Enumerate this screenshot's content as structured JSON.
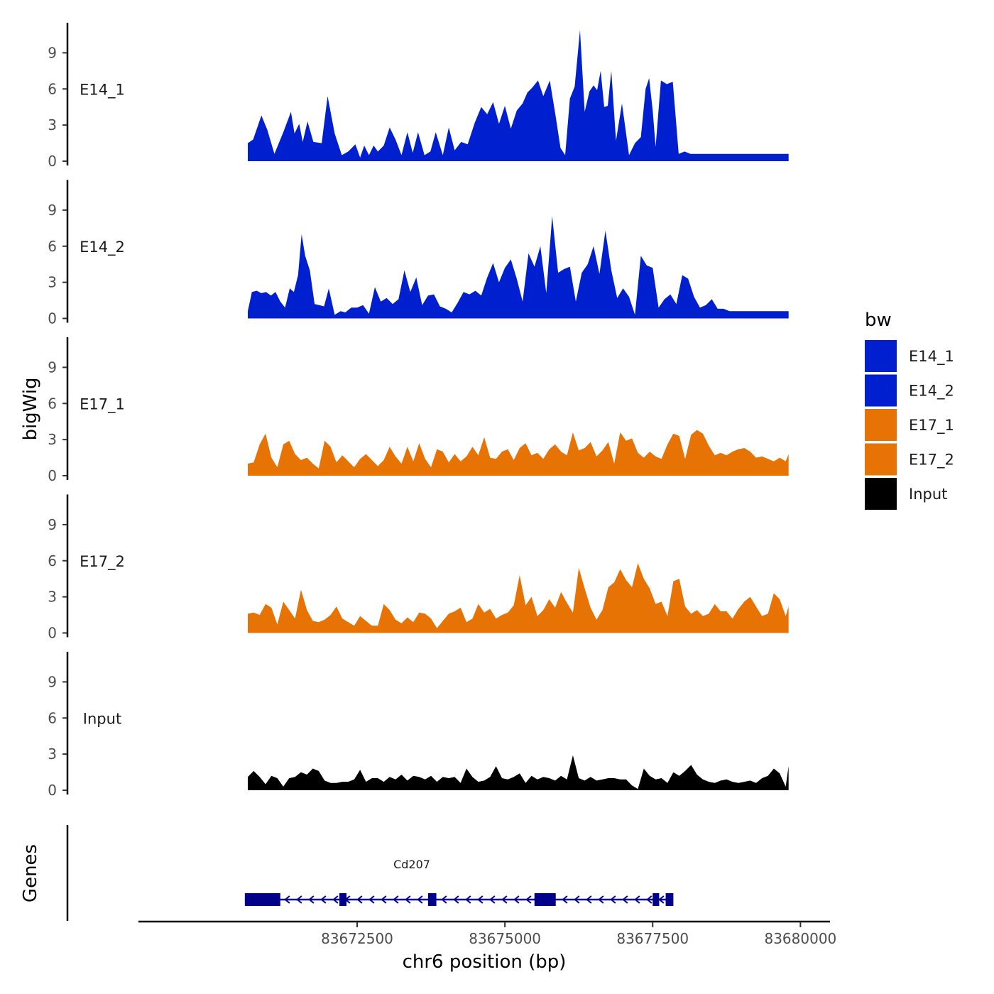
{
  "chart_data": {
    "type": "area",
    "y_axis_title": "bigWig",
    "x_axis_title": "chr6 position (bp)",
    "region": {
      "chrom": "chr6",
      "start": 83670650,
      "end": 83679800
    },
    "xlim": [
      83668800,
      83680500
    ],
    "ylim": [
      0,
      11.5
    ],
    "y_ticks": [
      0,
      3,
      6,
      9
    ],
    "x_ticks": [
      {
        "value": 83672500,
        "label": "83672500"
      },
      {
        "value": 83675000,
        "label": "83675000"
      },
      {
        "value": 83677500,
        "label": "83677500"
      },
      {
        "value": 83680000,
        "label": "83680000"
      }
    ],
    "legend": {
      "title": "bw",
      "items": [
        {
          "label": "E14_1",
          "color": "#0020cf"
        },
        {
          "label": "E14_2",
          "color": "#0020cf"
        },
        {
          "label": "E17_1",
          "color": "#e87305"
        },
        {
          "label": "E17_2",
          "color": "#e87305"
        },
        {
          "label": "Input",
          "color": "#000000"
        }
      ]
    },
    "tracks": [
      {
        "name": "E14_1",
        "color": "#0020cf",
        "x": [
          83670650,
          83670740,
          83670880,
          83670980,
          83671100,
          83671250,
          83671380,
          83671440,
          83671520,
          83671580,
          83671660,
          83671760,
          83671900,
          83672000,
          83672120,
          83672240,
          83672350,
          83672470,
          83672550,
          83672620,
          83672700,
          83672780,
          83672850,
          83672950,
          83673050,
          83673150,
          83673250,
          83673350,
          83673440,
          83673530,
          83673640,
          83673740,
          83673830,
          83673950,
          83674050,
          83674150,
          83674260,
          83674370,
          83674490,
          83674600,
          83674700,
          83674800,
          83674900,
          83675000,
          83675100,
          83675200,
          83675300,
          83675380,
          83675460,
          83675560,
          83675650,
          83675760,
          83675860,
          83675940,
          83676020,
          83676100,
          83676180,
          83676270,
          83676350,
          83676430,
          83676500,
          83676560,
          83676620,
          83676680,
          83676740,
          83676800,
          83676880,
          83676980,
          83677100,
          83677200,
          83677300,
          83677380,
          83677440,
          83677500,
          83677550,
          83677640,
          83677740,
          83677840,
          83677940,
          83678040,
          83678140,
          83678240,
          83678340,
          83678420,
          83678520,
          83678620,
          83678720,
          83678820,
          83678920,
          83679000,
          83679100,
          83679180,
          83679260,
          83679340,
          83679420,
          83679480,
          83679560,
          83679620,
          83679680,
          83679740,
          83679800
        ],
        "y": [
          1.5,
          1.8,
          3.8,
          2.6,
          0.6,
          2.4,
          4.1,
          2.3,
          3.1,
          1.6,
          3.3,
          1.6,
          1.5,
          5.4,
          2.3,
          0.5,
          0.8,
          1.4,
          0.3,
          1.3,
          0.5,
          1.3,
          0.8,
          1.3,
          2.8,
          1.8,
          0.5,
          2.4,
          0.7,
          2.4,
          0.5,
          0.8,
          2.4,
          0.5,
          2.8,
          0.9,
          1.6,
          1.4,
          3.2,
          4.5,
          3.9,
          4.9,
          3.1,
          4.6,
          2.7,
          4.2,
          4.8,
          5.7,
          6.1,
          6.7,
          5.4,
          6.7,
          3.7,
          1.1,
          0.5,
          5.2,
          6.2,
          10.9,
          4.1,
          5.8,
          6.3,
          5.9,
          7.5,
          4.5,
          4.6,
          7.5,
          1.7,
          4.8,
          0.5,
          1.5,
          2.0,
          6.0,
          6.9,
          4.2,
          1.2,
          6.7,
          6.4,
          6.6,
          0.6,
          0.8,
          0.6,
          0.6,
          0.6,
          0.6,
          0.6,
          0.6,
          0.6,
          0.6,
          0.6,
          0.6,
          0.6,
          0.6,
          0.6,
          0.6,
          0.6,
          0.6,
          0.6,
          0.6,
          0.6,
          0.6,
          0.6
        ]
      },
      {
        "name": "E14_2",
        "color": "#0020cf",
        "x": [
          83670650,
          83670720,
          83670800,
          83670880,
          83670960,
          83671040,
          83671120,
          83671200,
          83671280,
          83671360,
          83671430,
          83671500,
          83671560,
          83671620,
          83671700,
          83671780,
          83671860,
          83671940,
          83672020,
          83672120,
          83672220,
          83672300,
          83672400,
          83672500,
          83672600,
          83672700,
          83672800,
          83672900,
          83673000,
          83673100,
          83673200,
          83673300,
          83673400,
          83673500,
          83673600,
          83673700,
          83673800,
          83673900,
          83674000,
          83674100,
          83674200,
          83674300,
          83674400,
          83674500,
          83674600,
          83674700,
          83674800,
          83674900,
          83675000,
          83675100,
          83675200,
          83675300,
          83675400,
          83675500,
          83675600,
          83675700,
          83675800,
          83675900,
          83676000,
          83676100,
          83676200,
          83676300,
          83676400,
          83676500,
          83676600,
          83676700,
          83676800,
          83676900,
          83677000,
          83677100,
          83677200,
          83677300,
          83677400,
          83677500,
          83677600,
          83677700,
          83677800,
          83677900,
          83678000,
          83678100,
          83678200,
          83678300,
          83678400,
          83678500,
          83678600,
          83678700,
          83678800,
          83678900,
          83679000,
          83679100,
          83679200,
          83679300,
          83679400,
          83679500,
          83679600,
          83679700,
          83679800
        ],
        "y": [
          0.6,
          2.2,
          2.3,
          2.1,
          2.2,
          1.9,
          2.2,
          1.4,
          0.9,
          2.5,
          2.2,
          3.6,
          7.0,
          5.2,
          4.0,
          1.2,
          1.1,
          1.0,
          2.5,
          0.3,
          0.6,
          0.5,
          0.9,
          0.9,
          1.1,
          0.4,
          2.6,
          1.4,
          1.7,
          1.2,
          1.6,
          4.0,
          2.2,
          3.4,
          1.1,
          1.9,
          2.0,
          1.0,
          0.8,
          0.5,
          1.3,
          2.2,
          2.0,
          2.3,
          1.9,
          3.4,
          4.6,
          3.0,
          4.2,
          4.9,
          3.3,
          1.4,
          5.4,
          4.3,
          6.0,
          2.1,
          8.5,
          3.8,
          4.1,
          4.3,
          1.4,
          3.8,
          4.5,
          6.0,
          3.7,
          7.3,
          4.0,
          1.7,
          2.5,
          1.8,
          0.3,
          5.2,
          4.4,
          4.2,
          0.9,
          1.6,
          2.0,
          1.2,
          3.6,
          3.3,
          1.8,
          0.9,
          1.1,
          1.6,
          0.8,
          0.8,
          0.6,
          0.6,
          0.6,
          0.6,
          0.6,
          0.6,
          0.6,
          0.6,
          0.6,
          0.6,
          0.6
        ]
      },
      {
        "name": "E17_1",
        "color": "#e87305",
        "x": [
          83670650,
          83670750,
          83670850,
          83670950,
          83671050,
          83671150,
          83671250,
          83671350,
          83671450,
          83671550,
          83671650,
          83671750,
          83671850,
          83671950,
          83672050,
          83672150,
          83672250,
          83672350,
          83672450,
          83672550,
          83672650,
          83672750,
          83672850,
          83672950,
          83673050,
          83673150,
          83673250,
          83673350,
          83673450,
          83673550,
          83673650,
          83673750,
          83673850,
          83673950,
          83674050,
          83674150,
          83674250,
          83674350,
          83674450,
          83674550,
          83674650,
          83674750,
          83674850,
          83674950,
          83675050,
          83675150,
          83675250,
          83675350,
          83675450,
          83675550,
          83675650,
          83675750,
          83675850,
          83675950,
          83676050,
          83676150,
          83676250,
          83676350,
          83676450,
          83676550,
          83676650,
          83676750,
          83676850,
          83676950,
          83677050,
          83677150,
          83677250,
          83677350,
          83677450,
          83677550,
          83677650,
          83677750,
          83677850,
          83677950,
          83678050,
          83678150,
          83678250,
          83678350,
          83678450,
          83678550,
          83678650,
          83678750,
          83678850,
          83678950,
          83679050,
          83679150,
          83679250,
          83679350,
          83679450,
          83679550,
          83679650,
          83679750,
          83679800
        ],
        "y": [
          1.0,
          1.1,
          2.6,
          3.5,
          1.5,
          0.7,
          2.6,
          2.9,
          1.8,
          1.3,
          1.5,
          1.0,
          0.6,
          2.9,
          2.4,
          1.1,
          1.7,
          1.2,
          0.7,
          1.4,
          1.8,
          1.3,
          0.8,
          1.3,
          2.4,
          1.6,
          1.0,
          2.4,
          1.2,
          2.7,
          1.4,
          0.7,
          2.2,
          2.0,
          1.1,
          1.8,
          1.2,
          1.6,
          2.4,
          1.7,
          3.2,
          1.5,
          1.4,
          2.0,
          2.2,
          1.3,
          2.3,
          2.7,
          1.7,
          1.9,
          1.4,
          2.2,
          2.6,
          2.0,
          1.7,
          3.6,
          2.1,
          2.3,
          2.8,
          1.6,
          2.1,
          2.8,
          1.0,
          3.6,
          2.9,
          3.1,
          1.9,
          1.5,
          2.0,
          1.6,
          1.4,
          2.6,
          3.5,
          3.3,
          1.4,
          3.4,
          3.8,
          3.5,
          2.5,
          1.7,
          1.9,
          1.7,
          2.0,
          2.2,
          2.3,
          2.0,
          1.5,
          1.6,
          1.4,
          1.2,
          1.5,
          1.2,
          1.8
        ]
      },
      {
        "name": "E17_2",
        "color": "#e87305",
        "x": [
          83670650,
          83670750,
          83670850,
          83670950,
          83671050,
          83671150,
          83671250,
          83671350,
          83671450,
          83671550,
          83671650,
          83671750,
          83671850,
          83671950,
          83672050,
          83672150,
          83672250,
          83672350,
          83672450,
          83672550,
          83672650,
          83672750,
          83672850,
          83672950,
          83673050,
          83673150,
          83673250,
          83673350,
          83673450,
          83673550,
          83673650,
          83673750,
          83673850,
          83673950,
          83674050,
          83674150,
          83674250,
          83674350,
          83674450,
          83674550,
          83674650,
          83674750,
          83674850,
          83674950,
          83675050,
          83675150,
          83675250,
          83675350,
          83675450,
          83675550,
          83675650,
          83675750,
          83675850,
          83675950,
          83676050,
          83676150,
          83676250,
          83676350,
          83676450,
          83676550,
          83676650,
          83676750,
          83676850,
          83676950,
          83677050,
          83677150,
          83677250,
          83677350,
          83677450,
          83677550,
          83677650,
          83677750,
          83677850,
          83677950,
          83678050,
          83678150,
          83678250,
          83678350,
          83678450,
          83678550,
          83678650,
          83678750,
          83678850,
          83678950,
          83679050,
          83679150,
          83679250,
          83679350,
          83679450,
          83679550,
          83679650,
          83679750,
          83679800
        ],
        "y": [
          1.6,
          1.7,
          1.5,
          2.4,
          2.1,
          0.7,
          2.6,
          1.9,
          1.2,
          3.6,
          1.9,
          1.0,
          0.9,
          1.1,
          1.5,
          2.2,
          1.2,
          0.9,
          0.6,
          1.4,
          1.0,
          0.6,
          0.6,
          2.4,
          1.9,
          1.1,
          0.8,
          1.3,
          0.9,
          1.7,
          1.6,
          1.2,
          0.4,
          1.0,
          1.6,
          1.8,
          2.1,
          0.9,
          1.2,
          2.4,
          1.7,
          2.0,
          1.2,
          1.5,
          1.7,
          2.3,
          4.8,
          2.3,
          3.0,
          1.4,
          1.9,
          2.8,
          2.1,
          3.4,
          2.5,
          1.7,
          5.4,
          3.7,
          2.1,
          1.1,
          1.9,
          3.8,
          4.2,
          5.3,
          4.4,
          3.8,
          5.8,
          4.5,
          3.7,
          2.4,
          2.6,
          1.4,
          4.3,
          4.5,
          2.2,
          1.6,
          1.9,
          1.4,
          1.6,
          2.4,
          1.8,
          1.8,
          1.2,
          2.0,
          2.6,
          3.0,
          2.2,
          1.4,
          1.6,
          3.3,
          2.8,
          1.4,
          2.2
        ]
      },
      {
        "name": "Input",
        "color": "#000000",
        "x": [
          83670650,
          83670750,
          83670850,
          83670950,
          83671050,
          83671150,
          83671250,
          83671350,
          83671450,
          83671550,
          83671650,
          83671750,
          83671850,
          83671950,
          83672050,
          83672150,
          83672250,
          83672350,
          83672450,
          83672550,
          83672650,
          83672750,
          83672850,
          83672950,
          83673050,
          83673150,
          83673250,
          83673350,
          83673450,
          83673550,
          83673650,
          83673750,
          83673850,
          83673950,
          83674050,
          83674150,
          83674250,
          83674350,
          83674450,
          83674550,
          83674650,
          83674750,
          83674850,
          83674950,
          83675050,
          83675150,
          83675250,
          83675350,
          83675450,
          83675550,
          83675650,
          83675750,
          83675850,
          83675950,
          83676050,
          83676150,
          83676250,
          83676350,
          83676450,
          83676550,
          83676650,
          83676750,
          83676850,
          83676950,
          83677050,
          83677150,
          83677250,
          83677350,
          83677450,
          83677550,
          83677650,
          83677750,
          83677850,
          83677950,
          83678050,
          83678150,
          83678250,
          83678350,
          83678450,
          83678550,
          83678650,
          83678750,
          83678850,
          83678950,
          83679050,
          83679150,
          83679250,
          83679350,
          83679450,
          83679550,
          83679650,
          83679750,
          83679800
        ],
        "y": [
          1.1,
          1.6,
          1.1,
          0.5,
          1.2,
          1.0,
          0.3,
          1.0,
          1.1,
          1.5,
          1.3,
          1.8,
          1.6,
          0.8,
          0.6,
          0.6,
          0.7,
          0.7,
          0.9,
          1.7,
          0.7,
          1.0,
          1.0,
          0.7,
          1.1,
          0.9,
          1.3,
          0.8,
          1.2,
          1.1,
          0.9,
          1.2,
          0.7,
          1.1,
          1.0,
          1.1,
          0.6,
          1.8,
          1.1,
          0.7,
          0.8,
          1.1,
          2.0,
          1.0,
          0.9,
          1.1,
          1.4,
          0.6,
          1.2,
          0.9,
          1.1,
          1.0,
          0.8,
          1.2,
          0.9,
          2.9,
          1.0,
          0.8,
          1.1,
          0.8,
          0.9,
          1.0,
          1.0,
          0.9,
          0.9,
          0.4,
          0.1,
          1.8,
          1.2,
          0.9,
          1.0,
          0.6,
          1.5,
          1.2,
          1.6,
          2.1,
          1.3,
          0.9,
          0.7,
          0.6,
          0.8,
          0.9,
          0.7,
          0.6,
          0.7,
          0.8,
          0.6,
          1.0,
          1.2,
          1.8,
          1.4,
          0.3,
          2.0
        ]
      }
    ],
    "gene": {
      "name": "Cd207",
      "strand": "-",
      "start": 83670600,
      "end": 83677850,
      "color": "#00008b",
      "exons": [
        {
          "start": 83670600,
          "end": 83671200
        },
        {
          "start": 83672200,
          "end": 83672320
        },
        {
          "start": 83673700,
          "end": 83673840
        },
        {
          "start": 83675500,
          "end": 83675860
        },
        {
          "start": 83677500,
          "end": 83677610
        },
        {
          "start": 83677720,
          "end": 83677850
        }
      ]
    },
    "gene_track_label": "Genes"
  }
}
